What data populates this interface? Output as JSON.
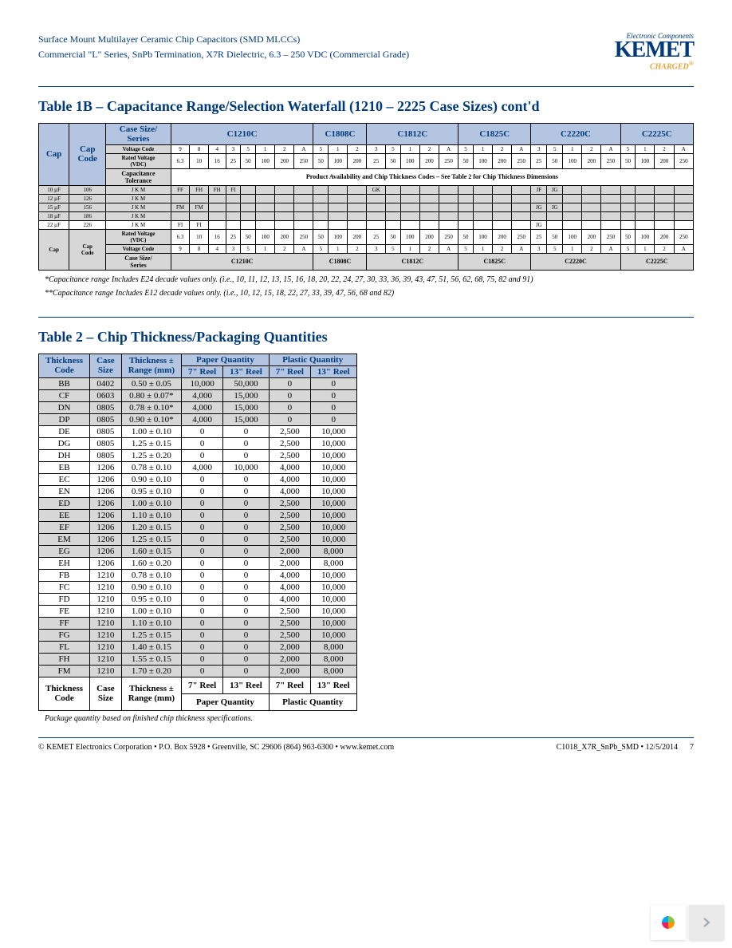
{
  "header": {
    "line1": "Surface Mount Multilayer Ceramic Chip Capacitors (SMD MLCCs)",
    "line2": "Commercial \"L\" Series, SnPb Termination, X7R Dielectric, 6.3 – 250 VDC (Commercial Grade)",
    "logo_tag": "Electronic Components",
    "logo_name": "KEMET",
    "logo_sub": "CHARGED"
  },
  "table1b": {
    "title": "Table 1B – Capacitance Range/Selection Waterfall (1210 – 2225 Case Sizes) cont'd",
    "col_hdrs": {
      "cap": "Cap",
      "cap_code": "Cap\nCode",
      "case_series": "Case Size/\nSeries"
    },
    "series": [
      "C1210C",
      "C1808C",
      "C1812C",
      "C1825C",
      "C2220C",
      "C2225C"
    ],
    "voltage_code_label": "Voltage Code",
    "rated_voltage_label": "Rated Voltage\n(VDC)",
    "cap_tol_label": "Capacitance\nTolerance",
    "product_avail": "Product Availability and Chip Thickness Codes – See Table 2 for Chip Thickness Dimensions",
    "vcode_1210": [
      "9",
      "8",
      "4",
      "3",
      "5",
      "1",
      "2",
      "A"
    ],
    "vcode_1808": [
      "5",
      "1",
      "2"
    ],
    "vcode_1812": [
      "3",
      "5",
      "1",
      "2",
      "A"
    ],
    "vcode_1825": [
      "5",
      "1",
      "2",
      "A"
    ],
    "vcode_2220": [
      "3",
      "5",
      "1",
      "2",
      "A"
    ],
    "vcode_2225": [
      "5",
      "1",
      "2",
      "A"
    ],
    "rv_1210": [
      "6.3",
      "10",
      "16",
      "25",
      "50",
      "100",
      "200",
      "250"
    ],
    "rv_1808": [
      "50",
      "100",
      "200"
    ],
    "rv_1812": [
      "25",
      "50",
      "100",
      "200",
      "250"
    ],
    "rv_1825": [
      "50",
      "100",
      "200",
      "250"
    ],
    "rv_2220": [
      "25",
      "50",
      "100",
      "200",
      "250"
    ],
    "rv_2225": [
      "50",
      "100",
      "200",
      "250"
    ],
    "rows": [
      {
        "cap": "10 µF",
        "code": "106",
        "tol": [
          "J",
          "K",
          "M"
        ],
        "c1210": [
          "FF",
          "FH",
          "FH",
          "FI"
        ],
        "c1812": [
          "GK"
        ],
        "c2220": [
          "JF",
          "JG"
        ]
      },
      {
        "cap": "12 µF",
        "code": "126",
        "tol": [
          "J",
          "K",
          "M"
        ],
        "c1210": [],
        "c2220": []
      },
      {
        "cap": "15 µF",
        "code": "156",
        "tol": [
          "J",
          "K",
          "M"
        ],
        "c1210": [
          "FM",
          "FM"
        ],
        "c2220": [
          "JG",
          "JG"
        ]
      },
      {
        "cap": "18 µF",
        "code": "186",
        "tol": [
          "J",
          "K",
          "M"
        ],
        "c1210": [],
        "c2220": []
      },
      {
        "cap": "22 µF",
        "code": "226",
        "tol": [
          "J",
          "K",
          "M"
        ],
        "c1210": [
          "FI",
          "FI"
        ],
        "c2220": [
          "JG"
        ]
      }
    ],
    "footnote1": "*Capacitance range Includes E24 decade values only. (i.e., 10, 11, 12, 13, 15, 16, 18, 20, 22, 24, 27, 30, 33, 36, 39, 43, 47, 51, 56, 62, 68, 75, 82 and 91)",
    "footnote2": "**Capacitance range Includes E12 decade values only. (i.e., 10, 12, 15, 18, 22, 27, 33, 39, 47, 56, 68 and 82)"
  },
  "table2": {
    "title": "Table 2 – Chip Thickness/Packaging Quantities",
    "headers": {
      "thickness_code": "Thickness\nCode",
      "case_size": "Case\nSize",
      "thickness_range": "Thickness ±\nRange (mm)",
      "paper_qty": "Paper Quantity",
      "plastic_qty": "Plastic Quantity",
      "reel7": "7\" Reel",
      "reel13": "13\" Reel"
    },
    "rows": [
      {
        "band": 1,
        "tc": "BB",
        "cs": "0402",
        "tr": "0.50 ± 0.05",
        "p7": "10,000",
        "p13": "50,000",
        "pl7": "0",
        "pl13": "0"
      },
      {
        "band": 1,
        "tc": "CF",
        "cs": "0603",
        "tr": "0.80 ± 0.07*",
        "p7": "4,000",
        "p13": "15,000",
        "pl7": "0",
        "pl13": "0"
      },
      {
        "band": 1,
        "tc": "DN",
        "cs": "0805",
        "tr": "0.78 ± 0.10*",
        "p7": "4,000",
        "p13": "15,000",
        "pl7": "0",
        "pl13": "0"
      },
      {
        "band": 1,
        "tc": "DP",
        "cs": "0805",
        "tr": "0.90 ± 0.10*",
        "p7": "4,000",
        "p13": "15,000",
        "pl7": "0",
        "pl13": "0"
      },
      {
        "band": 0,
        "tc": "DE",
        "cs": "0805",
        "tr": "1.00 ± 0.10",
        "p7": "0",
        "p13": "0",
        "pl7": "2,500",
        "pl13": "10,000"
      },
      {
        "band": 0,
        "tc": "DG",
        "cs": "0805",
        "tr": "1.25 ± 0.15",
        "p7": "0",
        "p13": "0",
        "pl7": "2,500",
        "pl13": "10,000"
      },
      {
        "band": 0,
        "tc": "DH",
        "cs": "0805",
        "tr": "1.25 ± 0.20",
        "p7": "0",
        "p13": "0",
        "pl7": "2,500",
        "pl13": "10,000"
      },
      {
        "band": 0,
        "tc": "EB",
        "cs": "1206",
        "tr": "0.78 ± 0.10",
        "p7": "4,000",
        "p13": "10,000",
        "pl7": "4,000",
        "pl13": "10,000"
      },
      {
        "band": 0,
        "tc": "EC",
        "cs": "1206",
        "tr": "0.90 ± 0.10",
        "p7": "0",
        "p13": "0",
        "pl7": "4,000",
        "pl13": "10,000"
      },
      {
        "band": 0,
        "tc": "EN",
        "cs": "1206",
        "tr": "0.95 ± 0.10",
        "p7": "0",
        "p13": "0",
        "pl7": "4,000",
        "pl13": "10,000"
      },
      {
        "band": 1,
        "tc": "ED",
        "cs": "1206",
        "tr": "1.00 ± 0.10",
        "p7": "0",
        "p13": "0",
        "pl7": "2,500",
        "pl13": "10,000"
      },
      {
        "band": 1,
        "tc": "EE",
        "cs": "1206",
        "tr": "1.10 ± 0.10",
        "p7": "0",
        "p13": "0",
        "pl7": "2,500",
        "pl13": "10,000"
      },
      {
        "band": 1,
        "tc": "EF",
        "cs": "1206",
        "tr": "1.20 ± 0.15",
        "p7": "0",
        "p13": "0",
        "pl7": "2,500",
        "pl13": "10,000"
      },
      {
        "band": 1,
        "tc": "EM",
        "cs": "1206",
        "tr": "1.25 ± 0.15",
        "p7": "0",
        "p13": "0",
        "pl7": "2,500",
        "pl13": "10,000"
      },
      {
        "band": 1,
        "tc": "EG",
        "cs": "1206",
        "tr": "1.60 ± 0.15",
        "p7": "0",
        "p13": "0",
        "pl7": "2,000",
        "pl13": "8,000"
      },
      {
        "band": 0,
        "tc": "EH",
        "cs": "1206",
        "tr": "1.60 ± 0.20",
        "p7": "0",
        "p13": "0",
        "pl7": "2,000",
        "pl13": "8,000"
      },
      {
        "band": 0,
        "tc": "FB",
        "cs": "1210",
        "tr": "0.78 ± 0.10",
        "p7": "0",
        "p13": "0",
        "pl7": "4,000",
        "pl13": "10,000"
      },
      {
        "band": 0,
        "tc": "FC",
        "cs": "1210",
        "tr": "0.90 ± 0.10",
        "p7": "0",
        "p13": "0",
        "pl7": "4,000",
        "pl13": "10,000"
      },
      {
        "band": 0,
        "tc": "FD",
        "cs": "1210",
        "tr": "0.95 ± 0.10",
        "p7": "0",
        "p13": "0",
        "pl7": "4,000",
        "pl13": "10,000"
      },
      {
        "band": 0,
        "tc": "FE",
        "cs": "1210",
        "tr": "1.00 ± 0.10",
        "p7": "0",
        "p13": "0",
        "pl7": "2,500",
        "pl13": "10,000"
      },
      {
        "band": 1,
        "tc": "FF",
        "cs": "1210",
        "tr": "1.10 ± 0.10",
        "p7": "0",
        "p13": "0",
        "pl7": "2,500",
        "pl13": "10,000"
      },
      {
        "band": 1,
        "tc": "FG",
        "cs": "1210",
        "tr": "1.25 ± 0.15",
        "p7": "0",
        "p13": "0",
        "pl7": "2,500",
        "pl13": "10,000"
      },
      {
        "band": 1,
        "tc": "FL",
        "cs": "1210",
        "tr": "1.40 ± 0.15",
        "p7": "0",
        "p13": "0",
        "pl7": "2,000",
        "pl13": "8,000"
      },
      {
        "band": 1,
        "tc": "FH",
        "cs": "1210",
        "tr": "1.55 ± 0.15",
        "p7": "0",
        "p13": "0",
        "pl7": "2,000",
        "pl13": "8,000"
      },
      {
        "band": 1,
        "tc": "FM",
        "cs": "1210",
        "tr": "1.70 ± 0.20",
        "p7": "0",
        "p13": "0",
        "pl7": "2,000",
        "pl13": "8,000"
      }
    ],
    "foot_note": "Package quantity based on finished chip thickness specifications."
  },
  "footer": {
    "left": "© KEMET Electronics Corporation • P.O. Box 5928 • Greenville, SC 29606 (864) 963-6300 • www.kemet.com",
    "right": "C1018_X7R_SnPb_SMD • 12/5/2014",
    "page": "7"
  },
  "colors": {
    "blue": "#003a7a",
    "lightblue": "#b3c5e0",
    "grey": "#d7d7d7",
    "orange": "#e8a23a"
  }
}
